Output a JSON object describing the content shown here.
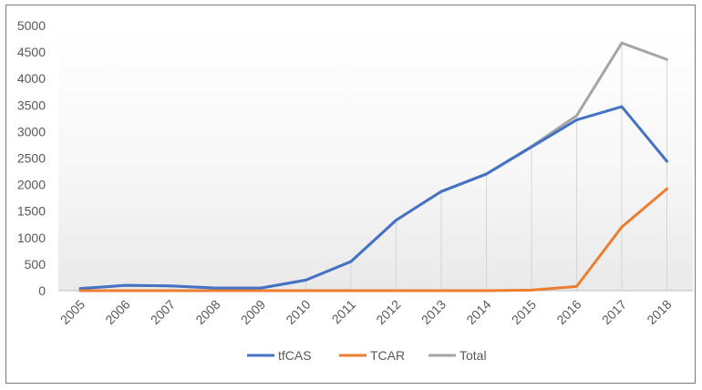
{
  "chart_data": {
    "type": "line",
    "title": "",
    "xlabel": "",
    "ylabel": "",
    "categories": [
      "2005",
      "2006",
      "2007",
      "2008",
      "2009",
      "2010",
      "2011",
      "2012",
      "2013",
      "2014",
      "2015",
      "2016",
      "2017",
      "2018"
    ],
    "series": [
      {
        "name": "tfCAS",
        "color": "#4472c4",
        "values": [
          40,
          100,
          90,
          50,
          50,
          200,
          550,
          1330,
          1870,
          2200,
          2710,
          3220,
          3470,
          2440
        ]
      },
      {
        "name": "TCAR",
        "color": "#ed7d31",
        "values": [
          0,
          0,
          0,
          0,
          0,
          0,
          0,
          0,
          0,
          0,
          10,
          80,
          1200,
          1920
        ]
      },
      {
        "name": "Total",
        "color": "#a5a5a5",
        "values": [
          40,
          100,
          90,
          50,
          50,
          200,
          550,
          1330,
          1870,
          2200,
          2720,
          3300,
          4670,
          4360
        ]
      }
    ],
    "ylim": [
      0,
      5000
    ],
    "yticks": [
      0,
      500,
      1000,
      1500,
      2000,
      2500,
      3000,
      3500,
      4000,
      4500,
      5000
    ],
    "grid": "vertical lines at categories",
    "legend": "bottom-center",
    "plot_background": "light gray gradient toward bottom"
  }
}
